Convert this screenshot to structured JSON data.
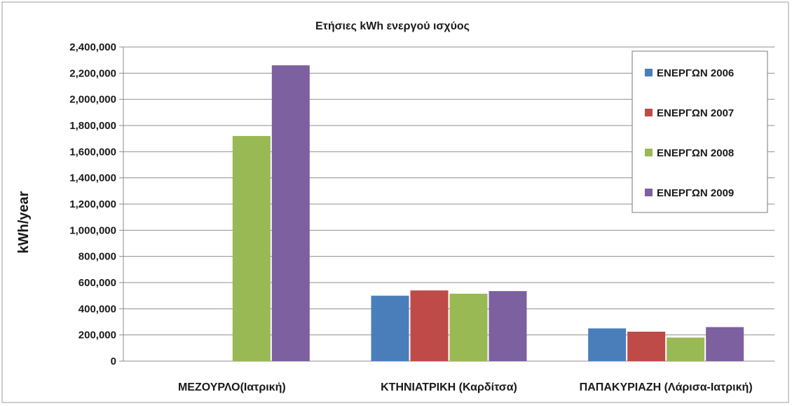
{
  "chart_data": {
    "type": "bar",
    "title": "Ετήσιες kWh ενεργού ισχύος",
    "xlabel": "",
    "ylabel": "kWh/year",
    "ylim": [
      0,
      2400000
    ],
    "yticks": [
      0,
      200000,
      400000,
      600000,
      800000,
      1000000,
      1200000,
      1400000,
      1600000,
      1800000,
      2000000,
      2200000,
      2400000
    ],
    "ytick_labels": [
      "0",
      "200,000",
      "400,000",
      "600,000",
      "800,000",
      "1,000,000",
      "1,200,000",
      "1,400,000",
      "1,600,000",
      "1,800,000",
      "2,000,000",
      "2,200,000",
      "2,400,000"
    ],
    "categories": [
      "ΜΕΖΟΥΡΛΟ(Ιατρική)",
      "ΚΤΗΝΙΑΤΡΙΚΗ (Καρδίτσα)",
      "ΠΑΠΑΚΥΡΙΑΖΗ (Λάρισα-Ιατρική)"
    ],
    "series": [
      {
        "name": "ΕΝΕΡΓΩΝ 2006",
        "color": "#4a7ebb",
        "values": [
          0,
          500000,
          250000
        ]
      },
      {
        "name": "ΕΝΕΡΓΩΝ 2007",
        "color": "#be4b48",
        "values": [
          0,
          540000,
          225000
        ]
      },
      {
        "name": "ΕΝΕΡΓΩΝ 2008",
        "color": "#98b954",
        "values": [
          1720000,
          515000,
          180000
        ]
      },
      {
        "name": "ΕΝΕΡΓΩΝ 2009",
        "color": "#7d60a0",
        "values": [
          2260000,
          535000,
          260000
        ]
      }
    ],
    "grid": true,
    "legend_position": "top-right"
  }
}
